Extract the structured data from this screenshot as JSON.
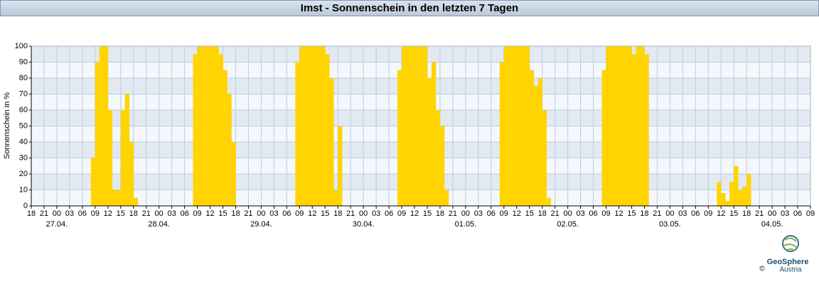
{
  "chart_data": {
    "type": "bar",
    "title": "Imst - Sonnenschein in den letzten 7 Tagen",
    "y_label": "Sonnenschein in %",
    "color": "#ffd400",
    "grid": true,
    "ylim": [
      0,
      100
    ],
    "yticks": [
      0,
      10,
      20,
      30,
      40,
      50,
      60,
      70,
      80,
      90,
      100
    ],
    "date_labels": [
      "27.04.",
      "28.04.",
      "29.04.",
      "30.04.",
      "01.05.",
      "02.05.",
      "03.05.",
      "04.05."
    ],
    "categories": [
      "18",
      null,
      null,
      "21",
      null,
      null,
      "00",
      null,
      null,
      "03",
      null,
      null,
      "06",
      null,
      null,
      "09",
      null,
      null,
      "12",
      null,
      null,
      "15",
      null,
      null,
      "18",
      null,
      null,
      "21",
      null,
      null,
      "00",
      null,
      null,
      "03",
      null,
      null,
      "06",
      null,
      null,
      "09",
      null,
      null,
      "12",
      null,
      null,
      "15",
      null,
      null,
      "18",
      null,
      null,
      "21",
      null,
      null,
      "00",
      null,
      null,
      "03",
      null,
      null,
      "06",
      null,
      null,
      "09",
      null,
      null,
      "12",
      null,
      null,
      "15",
      null,
      null,
      "18",
      null,
      null,
      "21",
      null,
      null,
      "00",
      null,
      null,
      "03",
      null,
      null,
      "06",
      null,
      null,
      "09",
      null,
      null,
      "12",
      null,
      null,
      "15",
      null,
      null,
      "18",
      null,
      null,
      "21",
      null,
      null,
      "00",
      null,
      null,
      "03",
      null,
      null,
      "06",
      null,
      null,
      "09",
      null,
      null,
      "12",
      null,
      null,
      "15",
      null,
      null,
      "18",
      null,
      null,
      "21",
      null,
      null,
      "00",
      null,
      null,
      "03",
      null,
      null,
      "06",
      null,
      null,
      "09",
      null,
      null,
      "12",
      null,
      null,
      "15",
      null,
      null,
      "18",
      null,
      null,
      "21",
      null,
      null,
      "00",
      null,
      null,
      "03",
      null,
      null,
      "06",
      null,
      null,
      "09",
      null,
      null,
      "12",
      null,
      null,
      "15",
      null,
      null,
      "18",
      null,
      null,
      "21",
      null,
      null,
      "00",
      null,
      null,
      "03",
      null,
      null,
      "06",
      null,
      null,
      "09"
    ],
    "values": [
      0,
      0,
      0,
      0,
      0,
      0,
      0,
      0,
      0,
      0,
      0,
      0,
      0,
      0,
      30,
      90,
      100,
      100,
      60,
      10,
      10,
      60,
      70,
      40,
      5,
      0,
      0,
      0,
      0,
      0,
      0,
      0,
      0,
      0,
      0,
      0,
      0,
      0,
      95,
      100,
      100,
      100,
      100,
      100,
      95,
      85,
      70,
      40,
      0,
      0,
      0,
      0,
      0,
      0,
      0,
      0,
      0,
      0,
      0,
      0,
      0,
      0,
      90,
      100,
      100,
      100,
      100,
      100,
      100,
      95,
      80,
      10,
      50,
      0,
      0,
      0,
      0,
      0,
      0,
      0,
      0,
      0,
      0,
      0,
      0,
      0,
      85,
      100,
      100,
      100,
      100,
      100,
      100,
      80,
      90,
      60,
      50,
      10,
      0,
      0,
      0,
      0,
      0,
      0,
      0,
      0,
      0,
      0,
      0,
      0,
      90,
      100,
      100,
      100,
      100,
      100,
      100,
      85,
      75,
      80,
      60,
      5,
      0,
      0,
      0,
      0,
      0,
      0,
      0,
      0,
      0,
      0,
      0,
      0,
      85,
      100,
      100,
      100,
      100,
      100,
      100,
      95,
      100,
      100,
      95,
      0,
      0,
      0,
      0,
      0,
      0,
      0,
      0,
      0,
      0,
      0,
      0,
      0,
      0,
      0,
      0,
      15,
      8,
      3,
      15,
      25,
      10,
      12,
      20,
      0,
      0,
      0,
      0,
      0,
      0,
      0,
      0,
      0,
      0,
      0,
      0,
      0,
      0,
      0
    ]
  },
  "logo": {
    "name": "GeoSphere",
    "sub": "Austria",
    "copyright": "©"
  }
}
